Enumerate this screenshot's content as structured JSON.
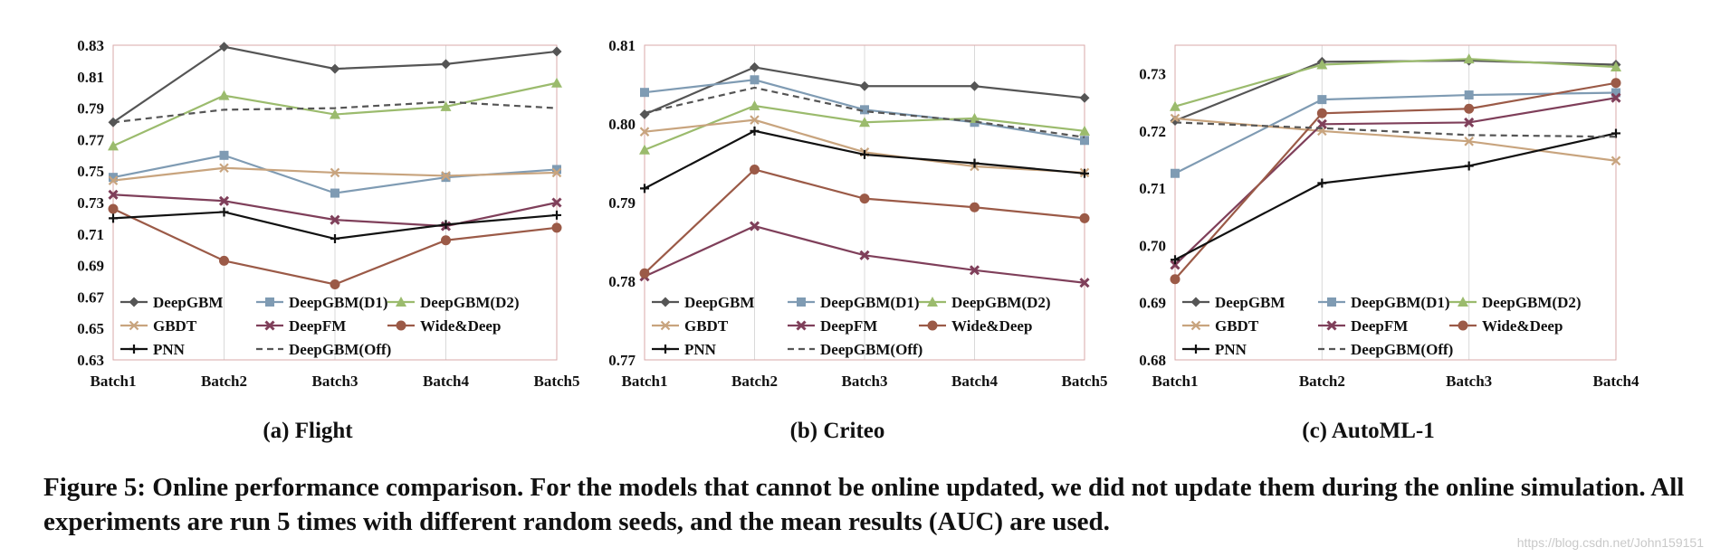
{
  "caption": "Figure 5: Online performance comparison. For the models that cannot be online updated, we did not update them during the online simulation. All experiments are run 5 times with different random seeds, and the mean results (AUC) are used.",
  "watermark": "https://blog.csdn.net/John159151",
  "colors": {
    "DeepGBM": "#555555",
    "DeepGBM(D1)": "#7f9bb3",
    "DeepGBM(D2)": "#9bbb6d",
    "GBDT": "#c8a47e",
    "DeepFM": "#7f3f5a",
    "Wide&Deep": "#9b5a47",
    "PNN": "#111111",
    "DeepGBM(Off)": "#555555",
    "grid": "#d9d9d9",
    "frame": "#d9a9a9"
  },
  "chart_data": [
    {
      "type": "line",
      "subtitle": "(a) Flight",
      "categories": [
        "Batch1",
        "Batch2",
        "Batch3",
        "Batch4",
        "Batch5"
      ],
      "ylim": [
        0.63,
        0.83
      ],
      "yticks": [
        "0.63",
        "0.65",
        "0.67",
        "0.69",
        "0.71",
        "0.73",
        "0.75",
        "0.77",
        "0.79",
        "0.81",
        "0.83"
      ],
      "grid": "vertical",
      "legend": "bottom",
      "series": [
        {
          "name": "DeepGBM",
          "marker": "diamond",
          "values": [
            0.781,
            0.829,
            0.815,
            0.818,
            0.826
          ]
        },
        {
          "name": "DeepGBM(D1)",
          "marker": "square",
          "values": [
            0.746,
            0.76,
            0.736,
            0.746,
            0.751
          ]
        },
        {
          "name": "DeepGBM(D2)",
          "marker": "triangle",
          "values": [
            0.766,
            0.798,
            0.786,
            0.791,
            0.806
          ]
        },
        {
          "name": "GBDT",
          "marker": "x",
          "values": [
            0.744,
            0.752,
            0.749,
            0.747,
            0.749
          ]
        },
        {
          "name": "DeepFM",
          "marker": "xbox",
          "values": [
            0.735,
            0.731,
            0.719,
            0.715,
            0.73
          ]
        },
        {
          "name": "Wide&Deep",
          "marker": "circle",
          "values": [
            0.726,
            0.693,
            0.678,
            0.706,
            0.714
          ]
        },
        {
          "name": "PNN",
          "marker": "plus",
          "values": [
            0.72,
            0.724,
            0.707,
            0.716,
            0.722
          ]
        },
        {
          "name": "DeepGBM(Off)",
          "marker": "none",
          "dashed": true,
          "values": [
            0.781,
            0.789,
            0.79,
            0.794,
            0.79
          ]
        }
      ]
    },
    {
      "type": "line",
      "subtitle": "(b) Criteo",
      "categories": [
        "Batch1",
        "Batch2",
        "Batch3",
        "Batch4",
        "Batch5"
      ],
      "ylim": [
        0.77,
        0.81
      ],
      "yticks": [
        "0.77",
        "0.78",
        "0.79",
        "0.80",
        "0.81"
      ],
      "grid": "vertical",
      "legend": "bottom",
      "series": [
        {
          "name": "DeepGBM",
          "marker": "diamond",
          "values": [
            0.8012,
            0.8072,
            0.8048,
            0.8048,
            0.8033
          ]
        },
        {
          "name": "DeepGBM(D1)",
          "marker": "square",
          "values": [
            0.804,
            0.8056,
            0.8018,
            0.8002,
            0.7979
          ]
        },
        {
          "name": "DeepGBM(D2)",
          "marker": "triangle",
          "values": [
            0.7967,
            0.8023,
            0.8002,
            0.8007,
            0.7991
          ]
        },
        {
          "name": "GBDT",
          "marker": "x",
          "values": [
            0.799,
            0.8005,
            0.7964,
            0.7946,
            0.7938
          ]
        },
        {
          "name": "DeepFM",
          "marker": "xbox",
          "values": [
            0.7806,
            0.787,
            0.7833,
            0.7814,
            0.7798
          ]
        },
        {
          "name": "Wide&Deep",
          "marker": "circle",
          "values": [
            0.781,
            0.7942,
            0.7905,
            0.7894,
            0.788
          ]
        },
        {
          "name": "PNN",
          "marker": "plus",
          "values": [
            0.7918,
            0.7991,
            0.7961,
            0.795,
            0.7937
          ]
        },
        {
          "name": "DeepGBM(Off)",
          "marker": "none",
          "dashed": true,
          "values": [
            0.8014,
            0.8046,
            0.8016,
            0.8003,
            0.7983
          ]
        }
      ]
    },
    {
      "type": "line",
      "subtitle": "(c) AutoML-1",
      "categories": [
        "Batch1",
        "Batch2",
        "Batch3",
        "Batch4"
      ],
      "ylim": [
        0.68,
        0.735
      ],
      "yticks": [
        "0.68",
        "0.69",
        "0.70",
        "0.71",
        "0.72",
        "0.73"
      ],
      "grid": "vertical",
      "legend": "bottom",
      "series": [
        {
          "name": "DeepGBM",
          "marker": "diamond",
          "values": [
            0.7218,
            0.7321,
            0.7323,
            0.7316
          ]
        },
        {
          "name": "DeepGBM(D1)",
          "marker": "square",
          "values": [
            0.7126,
            0.7255,
            0.7263,
            0.7267
          ]
        },
        {
          "name": "DeepGBM(D2)",
          "marker": "triangle",
          "values": [
            0.7243,
            0.7316,
            0.7326,
            0.7312
          ]
        },
        {
          "name": "GBDT",
          "marker": "x",
          "values": [
            0.7222,
            0.72,
            0.7182,
            0.7148
          ]
        },
        {
          "name": "DeepFM",
          "marker": "xbox",
          "values": [
            0.6966,
            0.7212,
            0.7215,
            0.7258
          ]
        },
        {
          "name": "Wide&Deep",
          "marker": "circle",
          "values": [
            0.6941,
            0.7231,
            0.7239,
            0.7284
          ]
        },
        {
          "name": "PNN",
          "marker": "plus",
          "values": [
            0.6975,
            0.7109,
            0.7139,
            0.7196
          ]
        },
        {
          "name": "DeepGBM(Off)",
          "marker": "none",
          "dashed": true,
          "values": [
            0.7215,
            0.7205,
            0.7193,
            0.719
          ]
        }
      ]
    }
  ]
}
